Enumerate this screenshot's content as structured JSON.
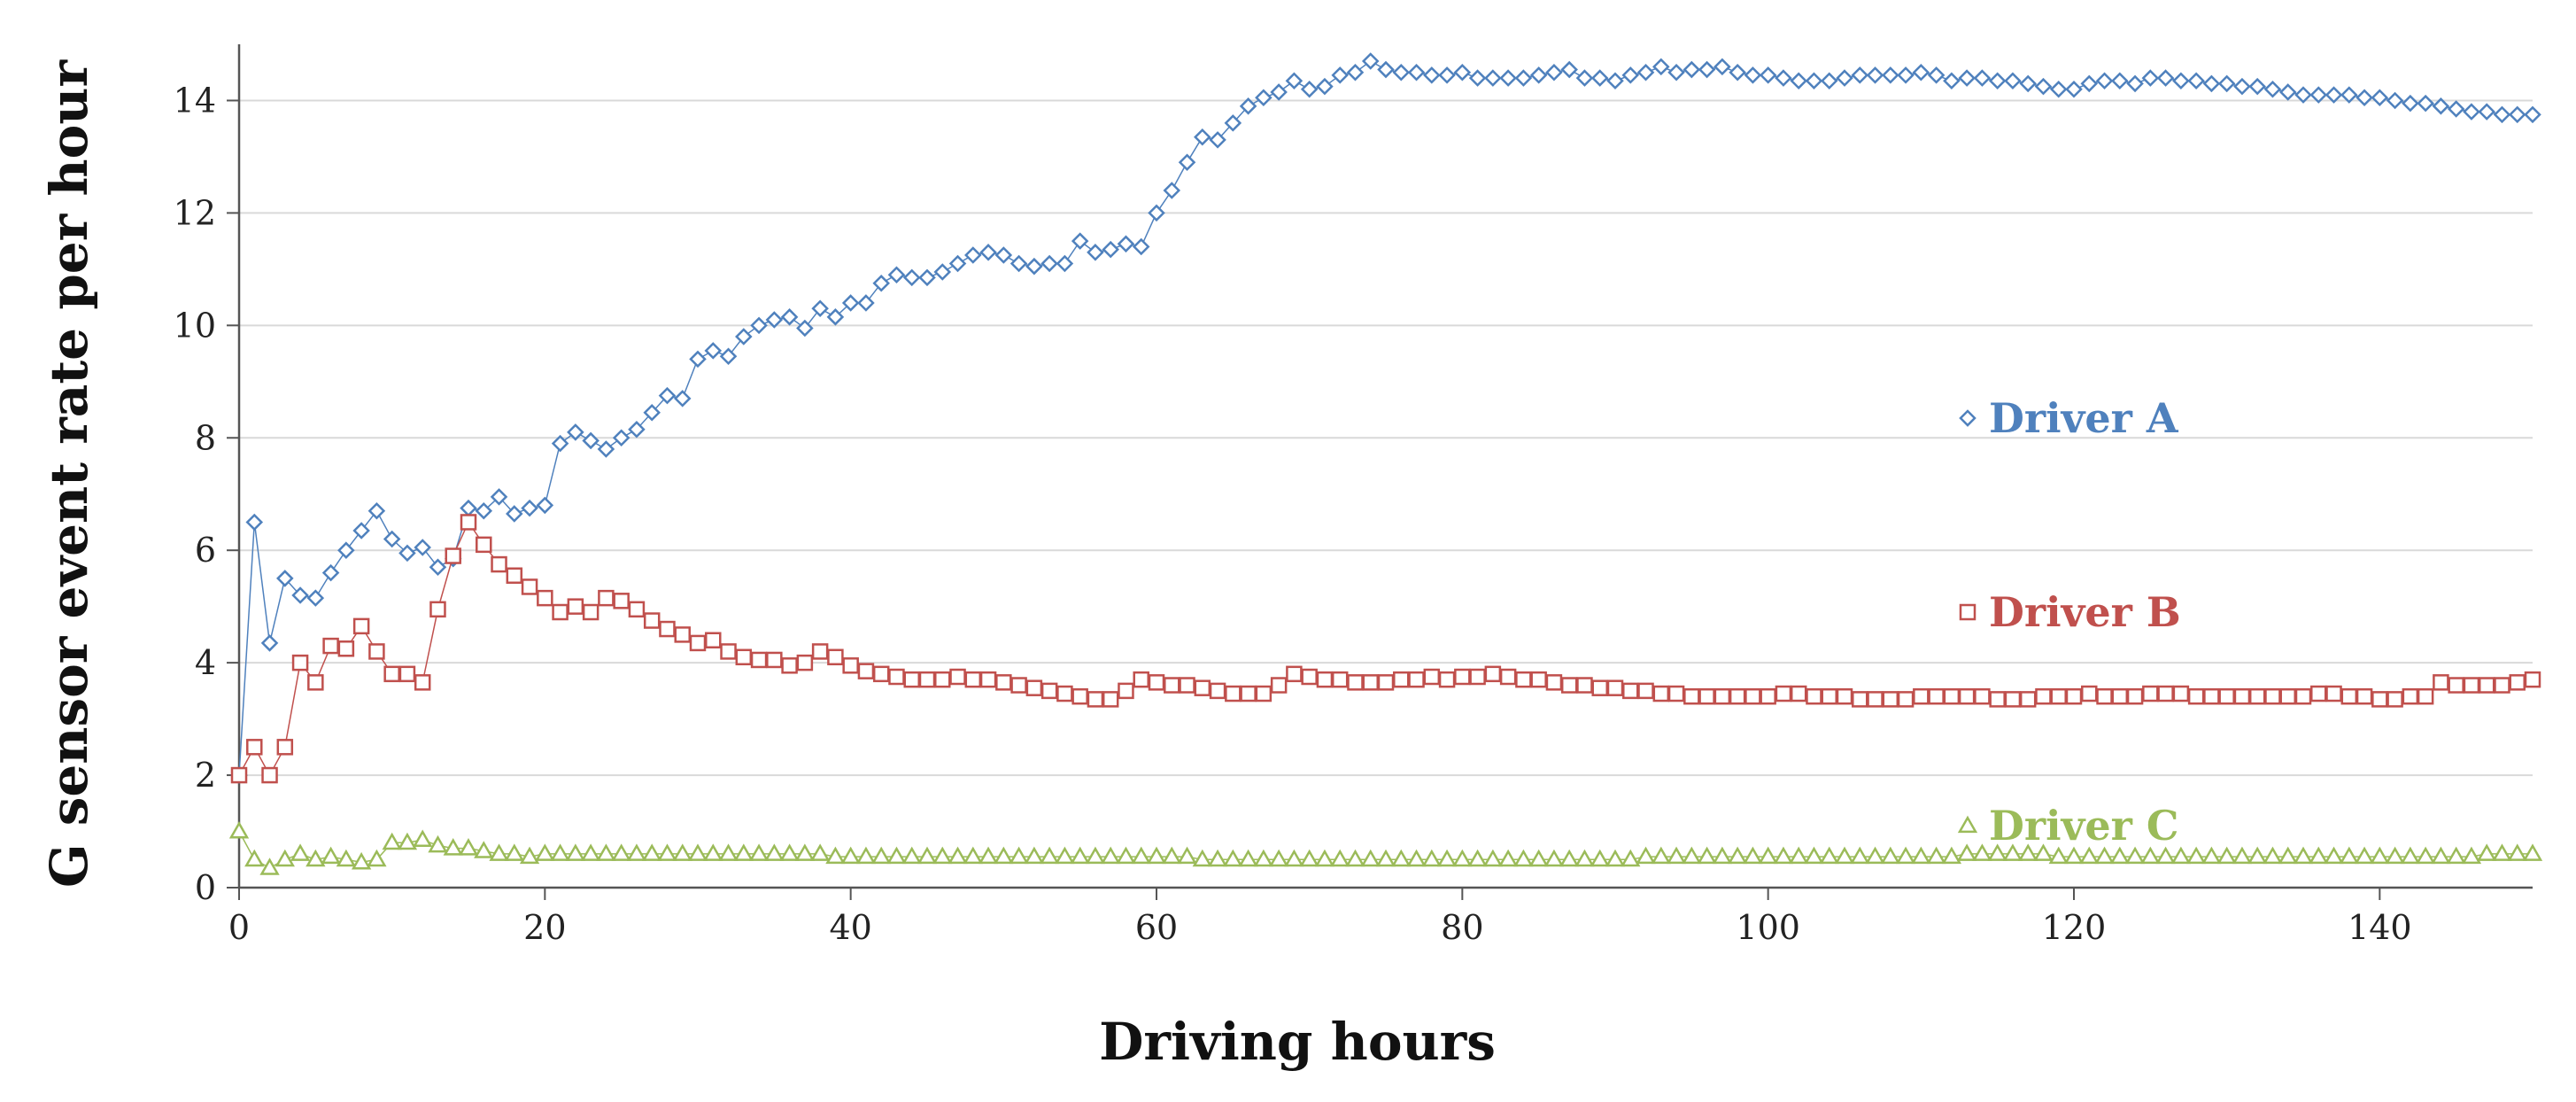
{
  "chart_data": {
    "type": "line",
    "title": "",
    "xlabel": "Driving hours",
    "ylabel": "G sensor event rate per hour",
    "xlim": [
      0,
      150
    ],
    "ylim": [
      0,
      15
    ],
    "xticks": [
      0,
      20,
      40,
      60,
      80,
      100,
      120,
      140
    ],
    "yticks": [
      0,
      2,
      4,
      6,
      8,
      10,
      12,
      14
    ],
    "grid": "horizontal",
    "legend_placement": "inline-right",
    "series": [
      {
        "name": "Driver A",
        "color": "#4f81bd",
        "marker": "diamond",
        "x": [
          0,
          1,
          2,
          3,
          4,
          5,
          6,
          7,
          8,
          9,
          10,
          11,
          12,
          13,
          14,
          15,
          16,
          17,
          18,
          19,
          20,
          21,
          22,
          23,
          24,
          25,
          26,
          27,
          28,
          29,
          30,
          31,
          32,
          33,
          34,
          35,
          36,
          37,
          38,
          39,
          40,
          41,
          42,
          43,
          44,
          45,
          46,
          47,
          48,
          49,
          50,
          51,
          52,
          53,
          54,
          55,
          56,
          57,
          58,
          59,
          60,
          61,
          62,
          63,
          64,
          65,
          66,
          67,
          68,
          69,
          70,
          71,
          72,
          73,
          74,
          75,
          76,
          77,
          78,
          79,
          80,
          81,
          82,
          83,
          84,
          85,
          86,
          87,
          88,
          89,
          90,
          91,
          92,
          93,
          94,
          95,
          96,
          97,
          98,
          99,
          100,
          101,
          102,
          103,
          104,
          105,
          106,
          107,
          108,
          109,
          110,
          111,
          112,
          113,
          114,
          115,
          116,
          117,
          118,
          119,
          120,
          121,
          122,
          123,
          124,
          125,
          126,
          127,
          128,
          129,
          130,
          131,
          132,
          133,
          134,
          135,
          136,
          137,
          138,
          139,
          140,
          141,
          142,
          143,
          144,
          145,
          146,
          147,
          148,
          149,
          150
        ],
        "values": [
          2.0,
          6.5,
          4.35,
          5.5,
          5.2,
          5.15,
          5.6,
          6.0,
          6.35,
          6.7,
          6.2,
          5.95,
          6.05,
          5.7,
          5.85,
          6.75,
          6.7,
          6.95,
          6.65,
          6.75,
          6.8,
          7.9,
          8.1,
          7.95,
          7.8,
          8.0,
          8.15,
          8.45,
          8.75,
          8.7,
          9.4,
          9.55,
          9.45,
          9.8,
          10.0,
          10.1,
          10.15,
          9.95,
          10.3,
          10.15,
          10.4,
          10.4,
          10.75,
          10.9,
          10.85,
          10.85,
          10.95,
          11.1,
          11.25,
          11.3,
          11.25,
          11.1,
          11.05,
          11.1,
          11.1,
          11.5,
          11.3,
          11.35,
          11.45,
          11.4,
          12.0,
          12.4,
          12.9,
          13.35,
          13.3,
          13.6,
          13.9,
          14.05,
          14.15,
          14.35,
          14.2,
          14.25,
          14.45,
          14.5,
          14.7,
          14.55,
          14.5,
          14.5,
          14.45,
          14.45,
          14.5,
          14.4,
          14.4,
          14.4,
          14.4,
          14.45,
          14.5,
          14.55,
          14.4,
          14.4,
          14.35,
          14.45,
          14.5,
          14.6,
          14.5,
          14.55,
          14.55,
          14.6,
          14.5,
          14.45,
          14.45,
          14.4,
          14.35,
          14.35,
          14.35,
          14.4,
          14.45,
          14.45,
          14.45,
          14.45,
          14.5,
          14.45,
          14.35,
          14.4,
          14.4,
          14.35,
          14.35,
          14.3,
          14.25,
          14.2,
          14.2,
          14.3,
          14.35,
          14.35,
          14.3,
          14.4,
          14.4,
          14.35,
          14.35,
          14.3,
          14.3,
          14.25,
          14.25,
          14.2,
          14.15,
          14.1,
          14.1,
          14.1,
          14.1,
          14.05,
          14.05,
          14.0,
          13.95,
          13.95,
          13.9,
          13.85,
          13.8,
          13.8,
          13.75,
          13.75,
          13.75
        ]
      },
      {
        "name": "Driver B",
        "color": "#c0504d",
        "marker": "square",
        "x": [
          0,
          1,
          2,
          3,
          4,
          5,
          6,
          7,
          8,
          9,
          10,
          11,
          12,
          13,
          14,
          15,
          16,
          17,
          18,
          19,
          20,
          21,
          22,
          23,
          24,
          25,
          26,
          27,
          28,
          29,
          30,
          31,
          32,
          33,
          34,
          35,
          36,
          37,
          38,
          39,
          40,
          41,
          42,
          43,
          44,
          45,
          46,
          47,
          48,
          49,
          50,
          51,
          52,
          53,
          54,
          55,
          56,
          57,
          58,
          59,
          60,
          61,
          62,
          63,
          64,
          65,
          66,
          67,
          68,
          69,
          70,
          71,
          72,
          73,
          74,
          75,
          76,
          77,
          78,
          79,
          80,
          81,
          82,
          83,
          84,
          85,
          86,
          87,
          88,
          89,
          90,
          91,
          92,
          93,
          94,
          95,
          96,
          97,
          98,
          99,
          100,
          101,
          102,
          103,
          104,
          105,
          106,
          107,
          108,
          109,
          110,
          111,
          112,
          113,
          114,
          115,
          116,
          117,
          118,
          119,
          120,
          121,
          122,
          123,
          124,
          125,
          126,
          127,
          128,
          129,
          130,
          131,
          132,
          133,
          134,
          135,
          136,
          137,
          138,
          139,
          140,
          141,
          142,
          143,
          144,
          145,
          146,
          147,
          148,
          149,
          150
        ],
        "values": [
          2.0,
          2.5,
          2.0,
          2.5,
          4.0,
          3.65,
          4.3,
          4.25,
          4.65,
          4.2,
          3.8,
          3.8,
          3.65,
          4.95,
          5.9,
          6.5,
          6.1,
          5.75,
          5.55,
          5.35,
          5.15,
          4.9,
          5.0,
          4.9,
          5.15,
          5.1,
          4.95,
          4.75,
          4.6,
          4.5,
          4.35,
          4.4,
          4.2,
          4.1,
          4.05,
          4.05,
          3.95,
          4.0,
          4.2,
          4.1,
          3.95,
          3.85,
          3.8,
          3.75,
          3.7,
          3.7,
          3.7,
          3.75,
          3.7,
          3.7,
          3.65,
          3.6,
          3.55,
          3.5,
          3.45,
          3.4,
          3.35,
          3.35,
          3.5,
          3.7,
          3.65,
          3.6,
          3.6,
          3.55,
          3.5,
          3.45,
          3.45,
          3.45,
          3.6,
          3.8,
          3.75,
          3.7,
          3.7,
          3.65,
          3.65,
          3.65,
          3.7,
          3.7,
          3.75,
          3.7,
          3.75,
          3.75,
          3.8,
          3.75,
          3.7,
          3.7,
          3.65,
          3.6,
          3.6,
          3.55,
          3.55,
          3.5,
          3.5,
          3.45,
          3.45,
          3.4,
          3.4,
          3.4,
          3.4,
          3.4,
          3.4,
          3.45,
          3.45,
          3.4,
          3.4,
          3.4,
          3.35,
          3.35,
          3.35,
          3.35,
          3.4,
          3.4,
          3.4,
          3.4,
          3.4,
          3.35,
          3.35,
          3.35,
          3.4,
          3.4,
          3.4,
          3.45,
          3.4,
          3.4,
          3.4,
          3.45,
          3.45,
          3.45,
          3.4,
          3.4,
          3.4,
          3.4,
          3.4,
          3.4,
          3.4,
          3.4,
          3.45,
          3.45,
          3.4,
          3.4,
          3.35,
          3.35,
          3.4,
          3.4,
          3.65,
          3.6,
          3.6,
          3.6,
          3.6,
          3.65,
          3.7
        ]
      },
      {
        "name": "Driver C",
        "color": "#9bbb59",
        "marker": "triangle",
        "x": [
          0,
          1,
          2,
          3,
          4,
          5,
          6,
          7,
          8,
          9,
          10,
          11,
          12,
          13,
          14,
          15,
          16,
          17,
          18,
          19,
          20,
          21,
          22,
          23,
          24,
          25,
          26,
          27,
          28,
          29,
          30,
          31,
          32,
          33,
          34,
          35,
          36,
          37,
          38,
          39,
          40,
          41,
          42,
          43,
          44,
          45,
          46,
          47,
          48,
          49,
          50,
          51,
          52,
          53,
          54,
          55,
          56,
          57,
          58,
          59,
          60,
          61,
          62,
          63,
          64,
          65,
          66,
          67,
          68,
          69,
          70,
          71,
          72,
          73,
          74,
          75,
          76,
          77,
          78,
          79,
          80,
          81,
          82,
          83,
          84,
          85,
          86,
          87,
          88,
          89,
          90,
          91,
          92,
          93,
          94,
          95,
          96,
          97,
          98,
          99,
          100,
          101,
          102,
          103,
          104,
          105,
          106,
          107,
          108,
          109,
          110,
          111,
          112,
          113,
          114,
          115,
          116,
          117,
          118,
          119,
          120,
          121,
          122,
          123,
          124,
          125,
          126,
          127,
          128,
          129,
          130,
          131,
          132,
          133,
          134,
          135,
          136,
          137,
          138,
          139,
          140,
          141,
          142,
          143,
          144,
          145,
          146,
          147,
          148,
          149,
          150
        ],
        "values": [
          1.0,
          0.5,
          0.35,
          0.5,
          0.6,
          0.5,
          0.55,
          0.5,
          0.45,
          0.5,
          0.8,
          0.8,
          0.85,
          0.75,
          0.7,
          0.7,
          0.65,
          0.6,
          0.6,
          0.55,
          0.6,
          0.6,
          0.6,
          0.6,
          0.6,
          0.6,
          0.6,
          0.6,
          0.6,
          0.6,
          0.6,
          0.6,
          0.6,
          0.6,
          0.6,
          0.6,
          0.6,
          0.6,
          0.6,
          0.55,
          0.55,
          0.55,
          0.55,
          0.55,
          0.55,
          0.55,
          0.55,
          0.55,
          0.55,
          0.55,
          0.55,
          0.55,
          0.55,
          0.55,
          0.55,
          0.55,
          0.55,
          0.55,
          0.55,
          0.55,
          0.55,
          0.55,
          0.55,
          0.5,
          0.5,
          0.5,
          0.5,
          0.5,
          0.5,
          0.5,
          0.5,
          0.5,
          0.5,
          0.5,
          0.5,
          0.5,
          0.5,
          0.5,
          0.5,
          0.5,
          0.5,
          0.5,
          0.5,
          0.5,
          0.5,
          0.5,
          0.5,
          0.5,
          0.5,
          0.5,
          0.5,
          0.5,
          0.55,
          0.55,
          0.55,
          0.55,
          0.55,
          0.55,
          0.55,
          0.55,
          0.55,
          0.55,
          0.55,
          0.55,
          0.55,
          0.55,
          0.55,
          0.55,
          0.55,
          0.55,
          0.55,
          0.55,
          0.55,
          0.6,
          0.6,
          0.6,
          0.6,
          0.6,
          0.6,
          0.55,
          0.55,
          0.55,
          0.55,
          0.55,
          0.55,
          0.55,
          0.55,
          0.55,
          0.55,
          0.55,
          0.55,
          0.55,
          0.55,
          0.55,
          0.55,
          0.55,
          0.55,
          0.55,
          0.55,
          0.55,
          0.55,
          0.55,
          0.55,
          0.55,
          0.55,
          0.55,
          0.55,
          0.6,
          0.6,
          0.6,
          0.6
        ]
      }
    ]
  }
}
